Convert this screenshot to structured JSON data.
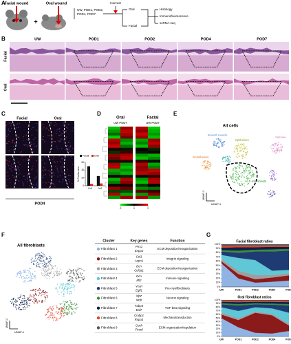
{
  "panel_labels": [
    "A",
    "B",
    "C",
    "D",
    "E",
    "F",
    "G"
  ],
  "a": {
    "facial_wound": "Facial wound",
    "oral_wound": "Oral wound",
    "plus": "+",
    "timepoints": [
      "UW, POD1, POD2,",
      "POD4, POD7"
    ],
    "harvest": "Harvest",
    "oral": "Oral",
    "facial": "Facial",
    "methods": [
      "Histology",
      "Immunofluorescence",
      "scRNA-seq"
    ]
  },
  "b": {
    "columns": [
      "UW",
      "POD1",
      "POD2",
      "POD4",
      "POD7"
    ],
    "rows": [
      "Facial",
      "Oral"
    ]
  },
  "c": {
    "image_columns": [
      "Facial",
      "Oral"
    ],
    "footer": "POD4",
    "chart": {
      "type": "bar",
      "categories": [
        "Col1",
        "Col3"
      ],
      "ylabel": "% Positive area",
      "series": [
        {
          "name": "Facial",
          "color": "#111111",
          "values": [
            50,
            25
          ]
        },
        {
          "name": "Oral",
          "color": "#d62728",
          "values": [
            5,
            6
          ]
        }
      ],
      "ylim": [
        0,
        60
      ],
      "yticks": [
        0,
        20,
        40,
        60
      ]
    }
  },
  "d": {
    "groups": [
      "Oral",
      "Facial"
    ],
    "group_columns": [
      "UW POD7",
      "UW POD7"
    ],
    "heatmap": {
      "type": "heatmap",
      "clim": [
        -2,
        2
      ],
      "scale_ticks": [
        -2,
        0,
        2
      ],
      "values": [
        [
          -1.5,
          1.2,
          1.4,
          -1.6
        ],
        [
          -1.2,
          1.5,
          1.1,
          -1.4
        ],
        [
          -0.8,
          1.3,
          1.6,
          -1.2
        ],
        [
          -1.6,
          0.9,
          1.2,
          -1.5
        ],
        [
          1.4,
          -1.1,
          -1.3,
          1.2
        ],
        [
          1.2,
          -1.4,
          -1.0,
          1.5
        ],
        [
          1.6,
          -0.9,
          -1.5,
          1.1
        ],
        [
          0.3,
          -0.2,
          0.1,
          -0.3
        ],
        [
          -0.4,
          0.5,
          -0.2,
          0.2
        ],
        [
          1.1,
          1.3,
          -1.2,
          -1.4
        ],
        [
          0.9,
          1.5,
          -1.5,
          -1.1
        ],
        [
          -0.2,
          0.3,
          0.4,
          -0.1
        ],
        [
          1.3,
          -1.2,
          1.4,
          -1.3
        ],
        [
          1.5,
          -1.5,
          1.1,
          -1.0
        ],
        [
          -1.3,
          -1.1,
          1.2,
          1.5
        ],
        [
          -1.1,
          -1.4,
          1.5,
          1.2
        ],
        [
          0.2,
          -0.3,
          -0.1,
          0.4
        ],
        [
          -1.4,
          1.4,
          -1.2,
          1.3
        ],
        [
          -1.0,
          1.1,
          -1.5,
          1.4
        ],
        [
          0.1,
          0.2,
          -0.4,
          0.0
        ],
        [
          1.2,
          0.8,
          -1.1,
          -0.9
        ],
        [
          -0.5,
          -0.6,
          0.7,
          0.4
        ],
        [
          1.4,
          -1.3,
          -1.2,
          1.1
        ],
        [
          -1.2,
          1.2,
          1.3,
          -1.2
        ]
      ]
    }
  },
  "e": {
    "title": "All cells",
    "clusters": [
      "Smooth muscle",
      "Epithelium",
      "Immune",
      "Endothelium",
      "Fibroblasts"
    ],
    "x_label": "UMAP-1",
    "y_label": "UMAP-2"
  },
  "f": {
    "title": "All fibroblasts",
    "x_label": "UMAP-1",
    "y_label": "UMAP-2",
    "table": {
      "header": [
        "Cluster",
        "Key genes",
        "Function"
      ],
      "rows": [
        {
          "cluster": "Fibroblast 1",
          "genes": [
            "Prrx1",
            "Enpp2"
          ],
          "function": "ECM deposition/reorganization",
          "color": "#8fb4e3"
        },
        {
          "cluster": "Fibroblast 2",
          "genes": [
            "Col1",
            "Aspn1"
          ],
          "function": "Integrin signaling",
          "color": "#8b1a1a"
        },
        {
          "cluster": "Fibroblast 3",
          "genes": [
            "Dcn",
            "Col3a1"
          ],
          "function": "ECM deposition/reorganization",
          "color": "#9e9e9e"
        },
        {
          "cluster": "Fibroblast 4",
          "genes": [
            "Dcn",
            "Mt2"
          ],
          "function": "Immune signaling",
          "color": "#5fc7d6"
        },
        {
          "cluster": "Fibroblast 5",
          "genes": [
            "Vcan",
            "Egfl1"
          ],
          "function": "Pre-myofibroblasts",
          "color": "#1f3b73"
        },
        {
          "cluster": "Fibroblast 6",
          "genes": [
            "Mpz",
            "Mob"
          ],
          "function": "Neuron signaling",
          "color": "#3a8f3a"
        },
        {
          "cluster": "Fibroblast 7",
          "genes": [
            "Fabp4",
            "Eaf7"
          ],
          "function": "TGF-beta signaling",
          "color": "#0d1f4a"
        },
        {
          "cluster": "Fibroblast 8",
          "genes": [
            "Crabp1",
            "Rspo3"
          ],
          "function": "Mechanotransduction",
          "color": "#e0452b"
        },
        {
          "cluster": "Fibroblast 9",
          "genes": [
            "Coch",
            "Fmod"
          ],
          "function": "ECM organization/regulation",
          "color": "#555555"
        }
      ]
    }
  },
  "g": {
    "type": "area",
    "categories": [
      "UW",
      "POD1",
      "POD2",
      "POD4",
      "POD7"
    ],
    "ylim": [
      0,
      100
    ],
    "yticks": [
      {
        "value": 0,
        "label": "0%"
      },
      {
        "value": 10,
        "label": "10%"
      },
      {
        "value": 20,
        "label": "20%"
      },
      {
        "value": 30,
        "label": "30%"
      },
      {
        "value": 40,
        "label": "40%"
      },
      {
        "value": 50,
        "label": "50%"
      },
      {
        "value": 60,
        "label": "60%"
      },
      {
        "value": 70,
        "label": "70%"
      },
      {
        "value": 80,
        "label": "80%"
      },
      {
        "value": 90,
        "label": "90%"
      },
      {
        "value": 100,
        "label": "100%"
      }
    ],
    "charts": [
      {
        "title": "Facial fibroblast ratios",
        "series": [
          {
            "color": "#8fb4e3",
            "values": [
              55,
              20,
              10,
              12,
              15
            ]
          },
          {
            "color": "#8b1a1a",
            "values": [
              5,
              10,
              8,
              10,
              12
            ]
          },
          {
            "color": "#9e9e9e",
            "values": [
              5,
              8,
              10,
              6,
              5
            ]
          },
          {
            "color": "#5fc7d6",
            "values": [
              10,
              30,
              35,
              10,
              8
            ]
          },
          {
            "color": "#1f3b73",
            "values": [
              8,
              12,
              20,
              45,
              45
            ]
          },
          {
            "color": "#3a8f3a",
            "values": [
              3,
              5,
              4,
              5,
              4
            ]
          },
          {
            "color": "#0d1f4a",
            "values": [
              6,
              8,
              6,
              6,
              5
            ]
          },
          {
            "color": "#e0452b",
            "values": [
              4,
              4,
              4,
              3,
              3
            ]
          },
          {
            "color": "#555555",
            "values": [
              4,
              3,
              3,
              3,
              3
            ]
          }
        ]
      },
      {
        "title": "Oral fibroblast ratios",
        "series": [
          {
            "color": "#8fb4e3",
            "values": [
              50,
              25,
              10,
              8,
              15
            ]
          },
          {
            "color": "#8b1a1a",
            "values": [
              10,
              20,
              55,
              50,
              15
            ]
          },
          {
            "color": "#9e9e9e",
            "values": [
              5,
              5,
              3,
              4,
              5
            ]
          },
          {
            "color": "#5fc7d6",
            "values": [
              15,
              20,
              12,
              15,
              30
            ]
          },
          {
            "color": "#1f3b73",
            "values": [
              8,
              15,
              8,
              10,
              20
            ]
          },
          {
            "color": "#3a8f3a",
            "values": [
              3,
              4,
              3,
              3,
              4
            ]
          },
          {
            "color": "#0d1f4a",
            "values": [
              4,
              5,
              4,
              5,
              5
            ]
          },
          {
            "color": "#e0452b",
            "values": [
              3,
              3,
              3,
              3,
              3
            ]
          },
          {
            "color": "#555555",
            "values": [
              2,
              3,
              2,
              2,
              3
            ]
          }
        ]
      }
    ]
  }
}
